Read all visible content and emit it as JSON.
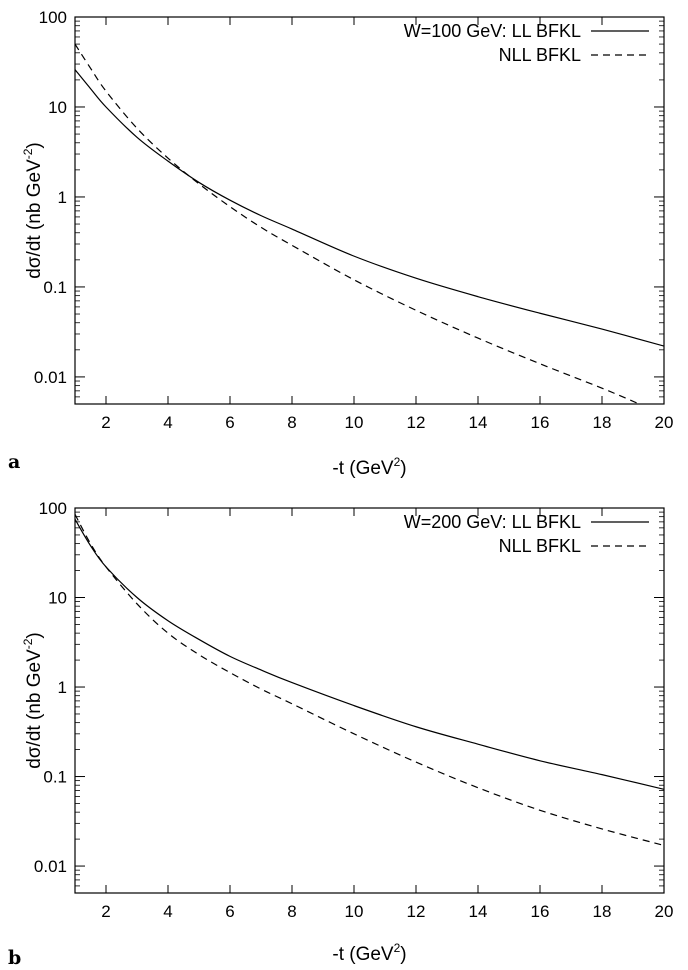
{
  "chart_data": [
    {
      "type": "line",
      "panel_label": "a",
      "xlabel": "-t  (GeV",
      "xlabel_sup": "2",
      "xlabel_end": ")",
      "ylabel": "dσ/dt  (nb GeV",
      "ylabel_sup": "-2",
      "ylabel_end": ")",
      "xlim": [
        1,
        20
      ],
      "ylim": [
        0.005,
        100
      ],
      "yscale": "log",
      "xticks": [
        2,
        4,
        6,
        8,
        10,
        12,
        14,
        16,
        18,
        20
      ],
      "yticks": [
        0.01,
        0.1,
        1,
        10,
        100
      ],
      "ytick_labels": [
        "0.01",
        "0.1",
        "1",
        "10",
        "100"
      ],
      "legend_placement": "top-right",
      "series": [
        {
          "name": "W=100 GeV: LL BFKL",
          "style": "solid",
          "x": [
            1,
            1.5,
            2,
            3,
            4,
            5,
            6,
            7,
            8,
            10,
            12,
            14,
            16,
            18,
            20
          ],
          "y": [
            26,
            16,
            10,
            4.6,
            2.5,
            1.45,
            0.92,
            0.62,
            0.44,
            0.22,
            0.125,
            0.078,
            0.051,
            0.034,
            0.022
          ]
        },
        {
          "name": "NLL BFKL",
          "style": "dashed",
          "x": [
            1,
            1.5,
            2,
            3,
            4,
            5,
            6,
            7,
            8,
            10,
            12,
            14,
            16,
            18,
            19.2
          ],
          "y": [
            50,
            27,
            15,
            5.8,
            2.7,
            1.4,
            0.78,
            0.46,
            0.29,
            0.12,
            0.055,
            0.027,
            0.014,
            0.0075,
            0.005
          ]
        }
      ]
    },
    {
      "type": "line",
      "panel_label": "b",
      "xlabel": "-t  (GeV",
      "xlabel_sup": "2",
      "xlabel_end": ")",
      "ylabel": "dσ/dt  (nb GeV",
      "ylabel_sup": "-2",
      "ylabel_end": ")",
      "xlim": [
        1,
        20
      ],
      "ylim": [
        0.005,
        100
      ],
      "yscale": "log",
      "xticks": [
        2,
        4,
        6,
        8,
        10,
        12,
        14,
        16,
        18,
        20
      ],
      "yticks": [
        0.01,
        0.1,
        1,
        10,
        100
      ],
      "ytick_labels": [
        "0.01",
        "0.1",
        "1",
        "10",
        "100"
      ],
      "legend_placement": "top-right",
      "series": [
        {
          "name": "W=200 GeV:   LL BFKL",
          "style": "solid",
          "x": [
            1,
            1.5,
            2,
            3,
            4,
            5,
            6,
            7,
            8,
            10,
            12,
            14,
            16,
            18,
            20
          ],
          "y": [
            75,
            38,
            22,
            10,
            5.5,
            3.4,
            2.2,
            1.55,
            1.12,
            0.62,
            0.36,
            0.23,
            0.15,
            0.105,
            0.072
          ]
        },
        {
          "name": "NLL BFKL",
          "style": "dashed",
          "x": [
            1,
            1.5,
            2,
            3,
            4,
            5,
            6,
            7,
            8,
            10,
            12,
            14,
            16,
            18,
            20
          ],
          "y": [
            85,
            40,
            22,
            8.5,
            4.0,
            2.3,
            1.45,
            0.95,
            0.65,
            0.3,
            0.145,
            0.075,
            0.042,
            0.026,
            0.017
          ]
        }
      ]
    }
  ]
}
